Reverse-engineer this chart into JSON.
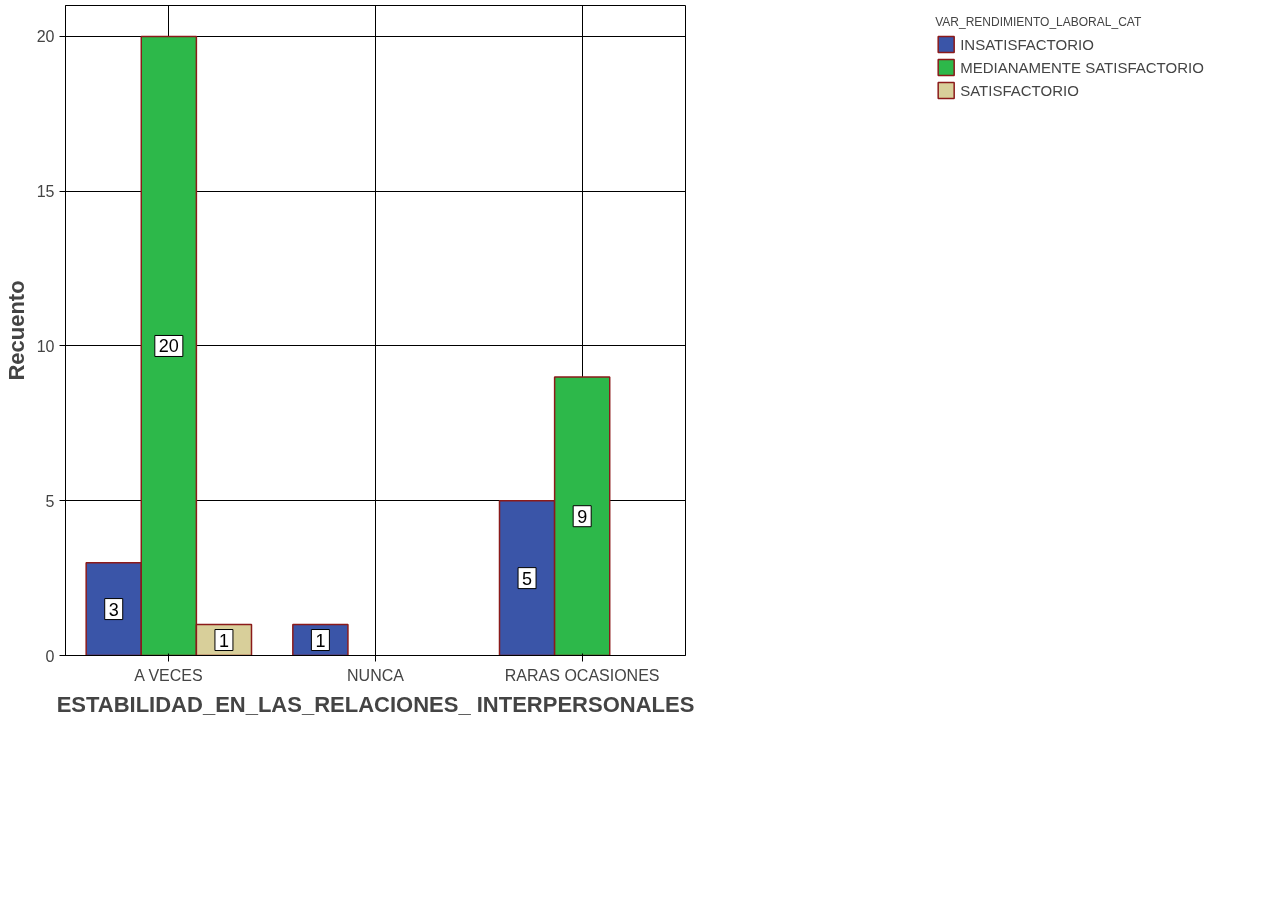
{
  "chart_data": {
    "type": "bar",
    "xlabel": "ESTABILIDAD_EN_LAS_RELACIONES_ INTERPERSONALES",
    "ylabel": "Recuento",
    "legend_title": "VAR_RENDIMIENTO_LABORAL_CAT",
    "categories": [
      "A VECES",
      "NUNCA",
      "RARAS OCASIONES"
    ],
    "series": [
      {
        "name": "INSATISFACTORIO",
        "color": "#3a55a8",
        "values": [
          3,
          1,
          5
        ]
      },
      {
        "name": "MEDIANAMENTE SATISFACTORIO",
        "color": "#2db84a",
        "values": [
          20,
          null,
          9
        ]
      },
      {
        "name": "SATISFACTORIO",
        "color": "#d8cf9a",
        "values": [
          1,
          null,
          null
        ]
      }
    ],
    "ylim": [
      0,
      21
    ],
    "yticks": [
      0,
      5,
      10,
      15,
      20
    ],
    "grid": true,
    "legend": "top right",
    "data_labels": true
  }
}
